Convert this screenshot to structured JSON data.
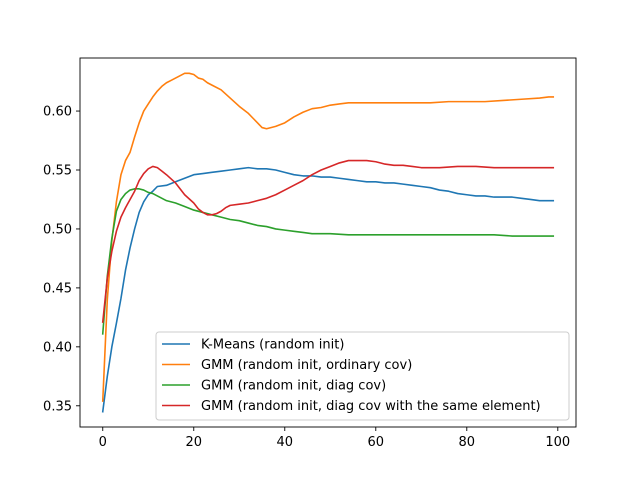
{
  "chart_data": {
    "type": "line",
    "title": "",
    "xlabel": "",
    "ylabel": "",
    "xlim": [
      -5,
      104
    ],
    "ylim": [
      0.332,
      0.645
    ],
    "xticks": [
      0,
      20,
      40,
      60,
      80,
      100
    ],
    "yticks": [
      0.35,
      0.4,
      0.45,
      0.5,
      0.55,
      0.6
    ],
    "grid": false,
    "legend_position": "lower-right",
    "series": [
      {
        "name": "K-Means (random init)",
        "color": "#1f77b4",
        "points": [
          [
            0,
            0.345
          ],
          [
            1,
            0.375
          ],
          [
            2,
            0.4
          ],
          [
            3,
            0.42
          ],
          [
            4,
            0.441
          ],
          [
            5,
            0.465
          ],
          [
            6,
            0.484
          ],
          [
            7,
            0.5
          ],
          [
            8,
            0.514
          ],
          [
            9,
            0.523
          ],
          [
            10,
            0.529
          ],
          [
            11,
            0.532
          ],
          [
            12,
            0.536
          ],
          [
            14,
            0.537
          ],
          [
            16,
            0.54
          ],
          [
            18,
            0.543
          ],
          [
            20,
            0.546
          ],
          [
            22,
            0.547
          ],
          [
            24,
            0.548
          ],
          [
            26,
            0.549
          ],
          [
            28,
            0.55
          ],
          [
            30,
            0.551
          ],
          [
            32,
            0.552
          ],
          [
            34,
            0.551
          ],
          [
            36,
            0.551
          ],
          [
            38,
            0.55
          ],
          [
            40,
            0.548
          ],
          [
            42,
            0.546
          ],
          [
            44,
            0.545
          ],
          [
            46,
            0.545
          ],
          [
            48,
            0.544
          ],
          [
            50,
            0.544
          ],
          [
            52,
            0.543
          ],
          [
            54,
            0.542
          ],
          [
            56,
            0.541
          ],
          [
            58,
            0.54
          ],
          [
            60,
            0.54
          ],
          [
            62,
            0.539
          ],
          [
            64,
            0.539
          ],
          [
            66,
            0.538
          ],
          [
            68,
            0.537
          ],
          [
            70,
            0.536
          ],
          [
            72,
            0.535
          ],
          [
            74,
            0.533
          ],
          [
            76,
            0.532
          ],
          [
            78,
            0.53
          ],
          [
            80,
            0.529
          ],
          [
            82,
            0.528
          ],
          [
            84,
            0.528
          ],
          [
            86,
            0.527
          ],
          [
            88,
            0.527
          ],
          [
            90,
            0.527
          ],
          [
            92,
            0.526
          ],
          [
            94,
            0.525
          ],
          [
            96,
            0.524
          ],
          [
            98,
            0.524
          ],
          [
            99,
            0.524
          ]
        ]
      },
      {
        "name": "GMM (random init, ordinary cov)",
        "color": "#ff7f0e",
        "points": [
          [
            0,
            0.354
          ],
          [
            1,
            0.44
          ],
          [
            2,
            0.49
          ],
          [
            3,
            0.523
          ],
          [
            4,
            0.546
          ],
          [
            5,
            0.558
          ],
          [
            6,
            0.565
          ],
          [
            7,
            0.578
          ],
          [
            8,
            0.59
          ],
          [
            9,
            0.6
          ],
          [
            10,
            0.606
          ],
          [
            11,
            0.612
          ],
          [
            12,
            0.617
          ],
          [
            13,
            0.621
          ],
          [
            14,
            0.624
          ],
          [
            15,
            0.626
          ],
          [
            16,
            0.628
          ],
          [
            17,
            0.63
          ],
          [
            18,
            0.632
          ],
          [
            19,
            0.632
          ],
          [
            20,
            0.631
          ],
          [
            21,
            0.628
          ],
          [
            22,
            0.627
          ],
          [
            23,
            0.624
          ],
          [
            24,
            0.622
          ],
          [
            26,
            0.618
          ],
          [
            28,
            0.611
          ],
          [
            30,
            0.604
          ],
          [
            32,
            0.598
          ],
          [
            33,
            0.594
          ],
          [
            34,
            0.59
          ],
          [
            35,
            0.586
          ],
          [
            36,
            0.585
          ],
          [
            38,
            0.587
          ],
          [
            40,
            0.59
          ],
          [
            42,
            0.595
          ],
          [
            44,
            0.599
          ],
          [
            46,
            0.602
          ],
          [
            48,
            0.603
          ],
          [
            50,
            0.605
          ],
          [
            52,
            0.606
          ],
          [
            54,
            0.607
          ],
          [
            56,
            0.607
          ],
          [
            58,
            0.607
          ],
          [
            60,
            0.607
          ],
          [
            64,
            0.607
          ],
          [
            68,
            0.607
          ],
          [
            72,
            0.607
          ],
          [
            76,
            0.608
          ],
          [
            80,
            0.608
          ],
          [
            84,
            0.608
          ],
          [
            88,
            0.609
          ],
          [
            92,
            0.61
          ],
          [
            96,
            0.611
          ],
          [
            98,
            0.612
          ],
          [
            99,
            0.612
          ]
        ]
      },
      {
        "name": "GMM (random init, diag cov)",
        "color": "#2ca02c",
        "points": [
          [
            0,
            0.411
          ],
          [
            1,
            0.46
          ],
          [
            2,
            0.492
          ],
          [
            3,
            0.515
          ],
          [
            4,
            0.525
          ],
          [
            5,
            0.53
          ],
          [
            6,
            0.533
          ],
          [
            7,
            0.534
          ],
          [
            8,
            0.534
          ],
          [
            9,
            0.533
          ],
          [
            10,
            0.531
          ],
          [
            11,
            0.53
          ],
          [
            12,
            0.528
          ],
          [
            14,
            0.524
          ],
          [
            16,
            0.522
          ],
          [
            18,
            0.519
          ],
          [
            20,
            0.516
          ],
          [
            22,
            0.514
          ],
          [
            24,
            0.512
          ],
          [
            26,
            0.51
          ],
          [
            28,
            0.508
          ],
          [
            30,
            0.507
          ],
          [
            32,
            0.505
          ],
          [
            34,
            0.503
          ],
          [
            36,
            0.502
          ],
          [
            38,
            0.5
          ],
          [
            40,
            0.499
          ],
          [
            42,
            0.498
          ],
          [
            44,
            0.497
          ],
          [
            46,
            0.496
          ],
          [
            48,
            0.496
          ],
          [
            50,
            0.496
          ],
          [
            54,
            0.495
          ],
          [
            58,
            0.495
          ],
          [
            62,
            0.495
          ],
          [
            66,
            0.495
          ],
          [
            70,
            0.495
          ],
          [
            74,
            0.495
          ],
          [
            78,
            0.495
          ],
          [
            82,
            0.495
          ],
          [
            86,
            0.495
          ],
          [
            90,
            0.494
          ],
          [
            94,
            0.494
          ],
          [
            99,
            0.494
          ]
        ]
      },
      {
        "name": "GMM (random init, diag cov with the same element)",
        "color": "#d62728",
        "points": [
          [
            0,
            0.421
          ],
          [
            1,
            0.458
          ],
          [
            2,
            0.481
          ],
          [
            3,
            0.498
          ],
          [
            4,
            0.51
          ],
          [
            5,
            0.518
          ],
          [
            6,
            0.525
          ],
          [
            7,
            0.532
          ],
          [
            8,
            0.541
          ],
          [
            9,
            0.547
          ],
          [
            10,
            0.551
          ],
          [
            11,
            0.553
          ],
          [
            12,
            0.552
          ],
          [
            13,
            0.549
          ],
          [
            14,
            0.546
          ],
          [
            16,
            0.539
          ],
          [
            18,
            0.529
          ],
          [
            20,
            0.522
          ],
          [
            21,
            0.517
          ],
          [
            22,
            0.514
          ],
          [
            23,
            0.512
          ],
          [
            24,
            0.512
          ],
          [
            25,
            0.513
          ],
          [
            26,
            0.515
          ],
          [
            27,
            0.518
          ],
          [
            28,
            0.52
          ],
          [
            30,
            0.521
          ],
          [
            32,
            0.522
          ],
          [
            34,
            0.524
          ],
          [
            36,
            0.526
          ],
          [
            38,
            0.529
          ],
          [
            40,
            0.533
          ],
          [
            42,
            0.537
          ],
          [
            44,
            0.541
          ],
          [
            46,
            0.546
          ],
          [
            48,
            0.55
          ],
          [
            50,
            0.553
          ],
          [
            52,
            0.556
          ],
          [
            54,
            0.558
          ],
          [
            56,
            0.558
          ],
          [
            58,
            0.558
          ],
          [
            60,
            0.557
          ],
          [
            62,
            0.555
          ],
          [
            64,
            0.554
          ],
          [
            66,
            0.554
          ],
          [
            68,
            0.553
          ],
          [
            70,
            0.552
          ],
          [
            74,
            0.552
          ],
          [
            78,
            0.553
          ],
          [
            82,
            0.553
          ],
          [
            86,
            0.552
          ],
          [
            90,
            0.552
          ],
          [
            94,
            0.552
          ],
          [
            99,
            0.552
          ]
        ]
      }
    ]
  }
}
